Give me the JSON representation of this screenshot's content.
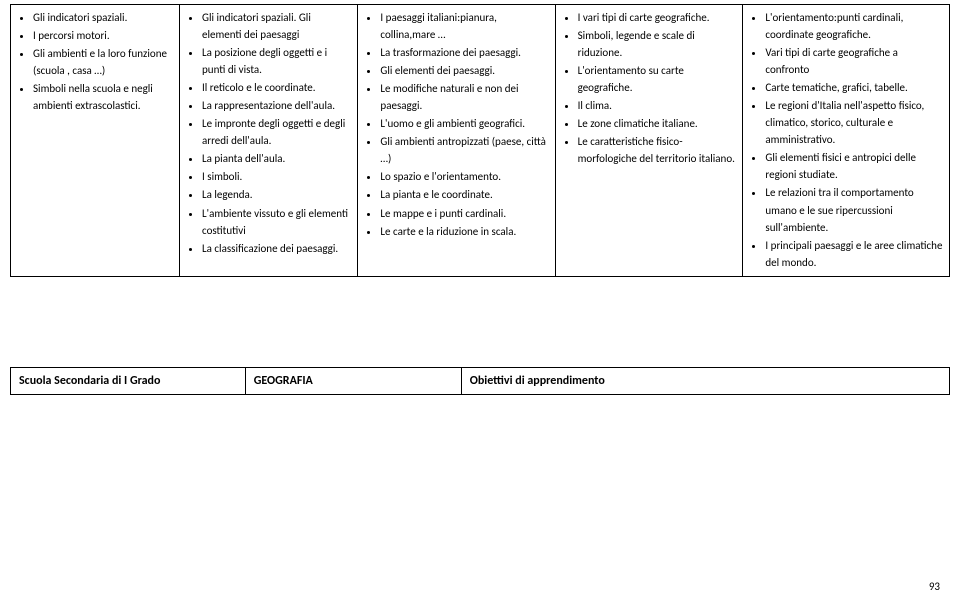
{
  "columns": [
    {
      "items": [
        "Gli indicatori spaziali.",
        "I percorsi motori.",
        "Gli ambienti e la loro funzione (scuola , casa …)",
        "Simboli nella scuola e negli ambienti extrascolastici."
      ]
    },
    {
      "items": [
        "Gli indicatori spaziali. Gli elementi dei paesaggi",
        "La posizione degli oggetti e i punti di vista.",
        "Il reticolo e le coordinate.",
        "La rappresentazione dell'aula.",
        "Le impronte degli oggetti e degli arredi dell'aula.",
        "La pianta dell'aula.",
        "I simboli.",
        "La legenda.",
        "L'ambiente vissuto e gli elementi costitutivi",
        "La classificazione dei paesaggi."
      ]
    },
    {
      "items": [
        "I paesaggi italiani:pianura, collina,mare …",
        "La trasformazione dei paesaggi.",
        "Gli elementi dei paesaggi.",
        "Le modifiche naturali e non dei paesaggi.",
        "L'uomo e gli ambienti geografici.",
        "Gli ambienti antropizzati (paese, città …)",
        "Lo spazio e l'orientamento.",
        "La pianta e le coordinate.",
        "Le mappe e i punti cardinali.",
        "Le carte e la riduzione in scala."
      ]
    },
    {
      "items": [
        "I vari tipi di carte geografiche.",
        "Simboli, legende e scale di riduzione.",
        "L'orientamento su carte geografiche.",
        "Il clima.",
        "Le zone climatiche italiane.",
        "Le caratteristiche fisico-morfologiche del territorio italiano."
      ]
    },
    {
      "items": [
        "L'orientamento:punti cardinali, coordinate geografiche.",
        "Vari tipi di carte geografiche a confronto",
        "Carte tematiche, grafici, tabelle.",
        "Le regioni d'Italia nell'aspetto fisico, climatico, storico, culturale e amministrativo.",
        "Gli elementi fisici e antropici delle regioni studiate.",
        "Le relazioni tra il comportamento umano e le sue ripercussioni sull'ambiente.",
        "I principali paesaggi e le aree climatiche del mondo."
      ]
    }
  ],
  "widths": [
    "18%",
    "19%",
    "21%",
    "20%",
    "22%"
  ],
  "bottom": {
    "c1": "Scuola Secondaria di I Grado",
    "c2": "GEOGRAFIA",
    "c3": "Obiettivi di apprendimento"
  },
  "page": "93"
}
